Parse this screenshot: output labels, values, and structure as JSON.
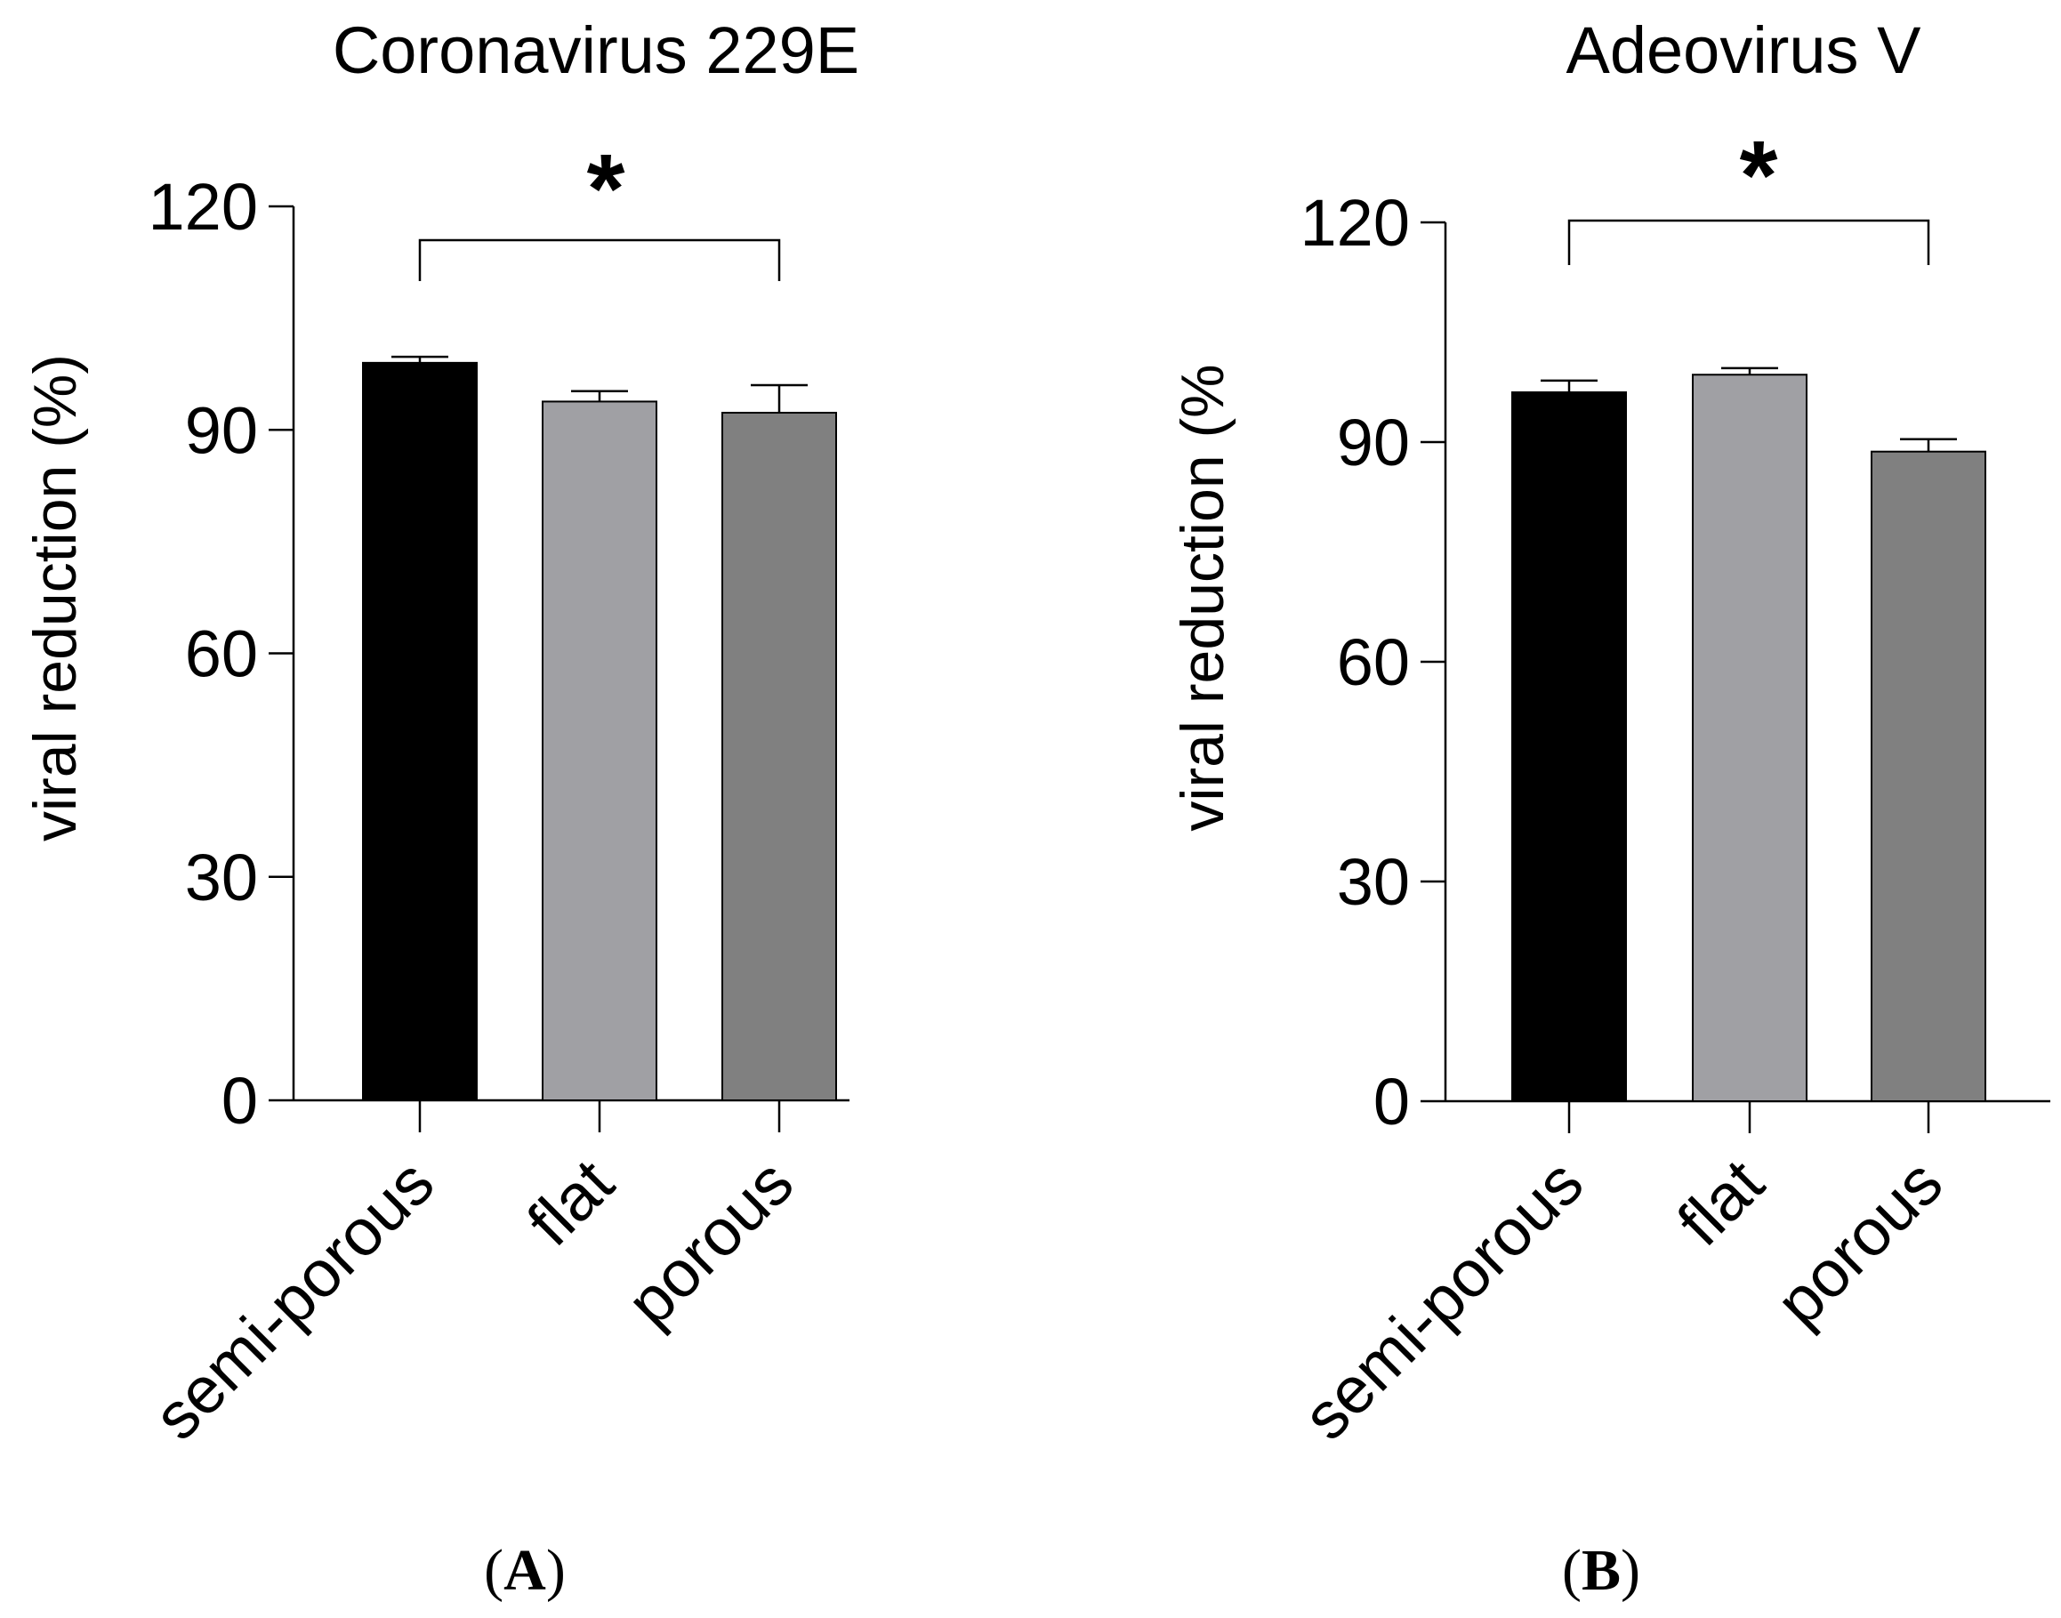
{
  "chart_data": [
    {
      "type": "bar",
      "panel": "A",
      "title": "Coronavirus 229E",
      "xlabel": "",
      "ylabel": "viral reduction (%)",
      "ylim": [
        0,
        120
      ],
      "yticks": [
        0,
        30,
        60,
        90,
        120
      ],
      "categories": [
        "semi-porous",
        "flat",
        "porous"
      ],
      "values": [
        99,
        93.8,
        92.3
      ],
      "errors": [
        0.8,
        1.4,
        3.7
      ],
      "colors": [
        "#000000",
        "#a0a0a4",
        "#808080"
      ],
      "significance": {
        "from": "semi-porous",
        "to": "porous",
        "label": "*"
      }
    },
    {
      "type": "bar",
      "panel": "B",
      "title": "Adeovirus V",
      "xlabel": "",
      "ylabel": "viral reduction (%",
      "ylim": [
        0,
        120
      ],
      "yticks": [
        0,
        30,
        60,
        90,
        120
      ],
      "categories": [
        "semi-porous",
        "flat",
        "porous"
      ],
      "values": [
        96.8,
        99.2,
        88.7
      ],
      "errors": [
        1.6,
        0.9,
        1.7
      ],
      "colors": [
        "#000000",
        "#a0a0a4",
        "#808080"
      ],
      "significance": {
        "from": "semi-porous",
        "to": "porous",
        "label": "*"
      }
    }
  ]
}
